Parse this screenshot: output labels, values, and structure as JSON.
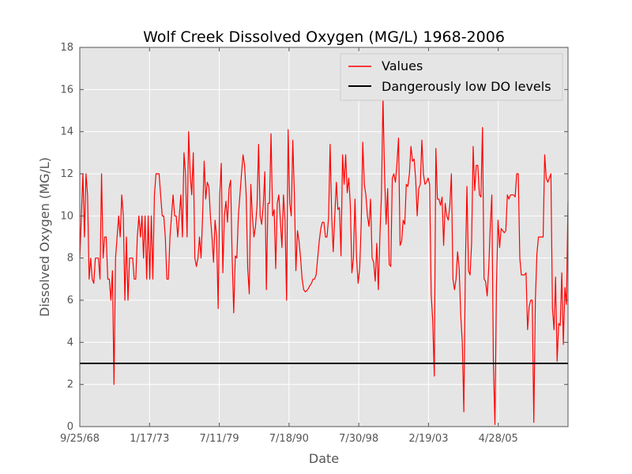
{
  "chart_data": {
    "type": "line",
    "title": "Wolf Creek Dissolved Oxygen (MG/L) 1968-2006",
    "xlabel": "Date",
    "ylabel": "Dissolved Oxygen (MG/L)",
    "ylim": [
      0,
      18
    ],
    "yticks": [
      0,
      2,
      4,
      6,
      8,
      10,
      12,
      14,
      16,
      18
    ],
    "x_tick_labels": [
      "9/25/68",
      "1/17/73",
      "7/11/79",
      "7/18/90",
      "7/30/98",
      "2/19/03",
      "4/28/05"
    ],
    "grid": true,
    "legend_position": "top-right",
    "threshold": {
      "name": "Dangerously low DO levels",
      "value": 3,
      "color": "#000000"
    },
    "series": [
      {
        "name": "Values",
        "color": "#ff0000",
        "values": [
          8,
          10,
          12,
          9,
          12,
          11,
          7,
          8,
          7,
          6.8,
          8,
          8,
          8,
          7,
          12,
          8,
          9,
          9,
          7,
          7,
          6,
          7.4,
          2,
          8,
          9,
          10,
          9,
          11,
          10,
          6,
          9,
          6,
          8,
          8,
          8,
          7,
          7,
          9,
          10,
          9,
          10,
          8,
          10,
          7,
          10,
          7,
          10,
          7,
          11,
          12,
          12,
          12,
          11,
          10,
          10,
          9,
          7,
          7,
          9,
          10,
          11,
          10,
          10,
          9,
          10,
          11,
          9,
          13,
          12,
          9,
          14,
          12,
          11,
          13,
          8,
          7.6,
          8,
          9,
          8,
          10,
          12.6,
          10.8,
          11.6,
          11.4,
          10,
          9,
          7.8,
          9.8,
          9,
          5.6,
          11,
          12.5,
          7.3,
          10,
          10.7,
          9.7,
          11.3,
          11.7,
          8,
          5.4,
          8.1,
          8,
          10,
          11,
          12,
          12.9,
          12.4,
          11,
          7.5,
          6.3,
          11.5,
          10,
          9,
          9.5,
          10.5,
          13.4,
          10,
          9.6,
          10.5,
          12.1,
          6.5,
          10.6,
          10.6,
          13.9,
          10,
          10.3,
          7.5,
          10.6,
          11,
          9.8,
          8.5,
          11,
          9.8,
          6,
          14.1,
          10.6,
          10,
          13.6,
          11,
          7.4,
          9.3,
          8.8,
          8,
          7,
          6.5,
          6.4,
          6.45,
          6.55,
          6.7,
          6.8,
          7,
          7,
          7.2,
          8,
          8.8,
          9.4,
          9.7,
          9.7,
          9,
          9,
          9.9,
          13.4,
          10,
          8.3,
          10,
          11.6,
          10.3,
          10.4,
          8.1,
          12.9,
          11.5,
          12.9,
          11.1,
          11.8,
          10.5,
          7.3,
          8,
          10.8,
          8,
          6.8,
          7.5,
          9.6,
          13.5,
          11.5,
          11,
          10,
          9.5,
          10.8,
          8,
          7.8,
          6.9,
          8.7,
          6.5,
          9,
          11,
          15.6,
          12,
          9.6,
          11.3,
          7.7,
          7.6,
          11.8,
          12,
          11.6,
          12.5,
          13.7,
          8.6,
          8.8,
          9.8,
          9.6,
          11.5,
          11.4,
          12,
          13.3,
          12.6,
          12.7,
          11.8,
          10,
          11.3,
          11.5,
          13.6,
          12,
          11.5,
          11.6,
          11.8,
          11.5,
          6.3,
          5,
          2.4,
          13.2,
          10.8,
          10.8,
          10.5,
          10.9,
          8.6,
          10.6,
          10,
          9.8,
          10.5,
          12,
          7,
          6.5,
          7,
          8.3,
          7.5,
          5.3,
          4,
          0.7,
          7.6,
          11.4,
          7.4,
          7.2,
          8.7,
          13.3,
          11.2,
          12.4,
          12.4,
          11,
          10.9,
          14.2,
          7,
          6.9,
          6.2,
          7.5,
          9.5,
          11,
          3,
          0.1,
          6.7,
          9.8,
          8.5,
          9.4,
          9.3,
          9.2,
          9.3,
          11,
          10.8,
          11,
          11,
          11,
          10.9,
          12,
          12,
          8,
          7.2,
          7.2,
          7.2,
          7.3,
          4.6,
          5.7,
          6,
          6,
          0.2,
          6,
          8.2,
          9,
          9,
          9,
          9,
          12.9,
          11.8,
          11.6,
          11.8,
          12,
          5.6,
          4.6,
          7.1,
          3.1,
          4.9,
          4.8,
          7.3,
          3.9,
          6.6,
          5.8,
          10.7
        ]
      },
      {
        "name": "Dangerously low DO levels",
        "color": "#000000",
        "values": [
          3,
          3
        ]
      }
    ]
  }
}
